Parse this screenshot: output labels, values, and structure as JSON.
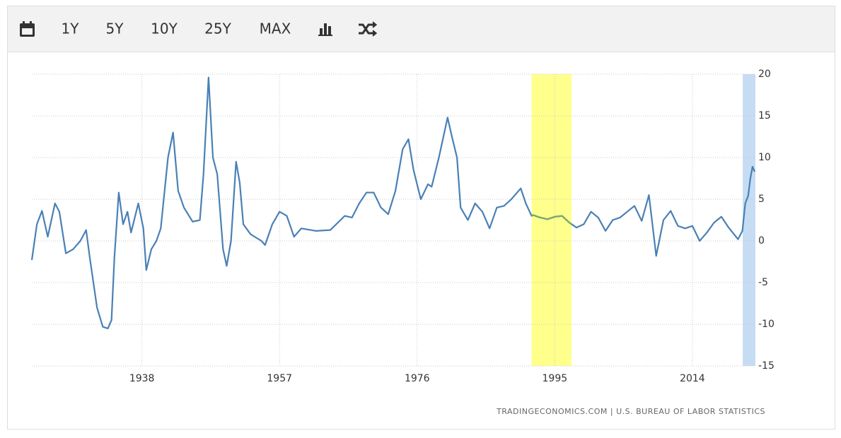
{
  "toolbar": {
    "buttons": [
      "1Y",
      "5Y",
      "10Y",
      "25Y",
      "MAX"
    ]
  },
  "chart_data": {
    "type": "line",
    "x": [
      1922.8,
      1923.5,
      1924.2,
      1925,
      1926,
      1926.6,
      1927.5,
      1928.5,
      1929.5,
      1930.3,
      1930.8,
      1931.8,
      1932.6,
      1933.3,
      1933.8,
      1934.2,
      1934.8,
      1935.4,
      1936,
      1936.5,
      1937.5,
      1938.2,
      1938.6,
      1939.3,
      1940,
      1940.6,
      1941.6,
      1942.3,
      1943,
      1943.8,
      1945,
      1946,
      1946.5,
      1947.2,
      1947.8,
      1948.4,
      1949.2,
      1949.7,
      1950.3,
      1951,
      1951.5,
      1952,
      1953,
      1954.5,
      1955,
      1956,
      1957,
      1958,
      1959,
      1960,
      1962,
      1964,
      1966,
      1967,
      1968,
      1969,
      1970,
      1971,
      1972,
      1973,
      1974,
      1974.8,
      1975.5,
      1976.5,
      1977.5,
      1978,
      1979,
      1980.2,
      1980.8,
      1981.5,
      1982,
      1983,
      1984,
      1985,
      1986,
      1987,
      1988,
      1989,
      1990.3,
      1991,
      1991.8,
      1992,
      1993,
      1994,
      1995,
      1996,
      1997,
      1998,
      1999,
      2000,
      2001,
      2002,
      2003,
      2004,
      2005,
      2006,
      2007,
      2008,
      2009,
      2010,
      2011,
      2012,
      2013,
      2014,
      2015,
      2016,
      2017,
      2018,
      2019,
      2020.3,
      2020.9,
      2021.3,
      2021.7,
      2022,
      2022.3,
      2022.6
    ],
    "series": [
      {
        "color": "#4a80b5",
        "values": [
          -2.3,
          2,
          3.6,
          0.5,
          4.5,
          3.5,
          -1.5,
          -1,
          0,
          1.3,
          -2,
          -8,
          -10.3,
          -10.5,
          -9.5,
          -2,
          5.8,
          2,
          3.5,
          1,
          4.5,
          1.5,
          -3.5,
          -1,
          0,
          1.5,
          10,
          13,
          6,
          4,
          2.3,
          2.5,
          8,
          19.6,
          10,
          8,
          -1,
          -3,
          0,
          9.5,
          7,
          2,
          0.8,
          0,
          -0.5,
          2,
          3.5,
          3,
          0.5,
          1.5,
          1.2,
          1.3,
          3,
          2.8,
          4.5,
          5.8,
          5.8,
          4,
          3.2,
          6,
          11,
          12.2,
          8.5,
          5,
          6.8,
          6.5,
          10,
          14.8,
          12.5,
          10,
          4,
          2.5,
          4.5,
          3.5,
          1.5,
          4,
          4.2,
          5,
          6.3,
          4.5,
          3,
          3.1,
          2.8,
          2.6,
          2.9,
          3,
          2.2,
          1.6,
          2,
          3.5,
          2.8,
          1.2,
          2.5,
          2.8,
          3.5,
          4.2,
          2.4,
          5.5,
          -1.8,
          2.5,
          3.6,
          1.8,
          1.5,
          1.8,
          0,
          1,
          2.2,
          2.9,
          1.6,
          0.2,
          1.2,
          4.5,
          5.4,
          7.5,
          8.9,
          8.3
        ]
      }
    ],
    "highlights": [
      {
        "start": 1991.8,
        "end": 1997.3,
        "color": "#ffff8c",
        "line_color": "#7ba86a"
      },
      {
        "start": 2020.95,
        "end": 2022.7,
        "color": "#c6dcf3"
      }
    ],
    "xlim": [
      1922.8,
      2022.7
    ],
    "xticks": [
      1938,
      1957,
      1976,
      1995,
      2014
    ],
    "ylim": [
      -15,
      20
    ],
    "yticks": [
      -15,
      -10,
      -5,
      0,
      5,
      10,
      15,
      20
    ],
    "grid": true,
    "source": "TRADINGECONOMICS.COM | U.S. BUREAU OF LABOR STATISTICS"
  }
}
